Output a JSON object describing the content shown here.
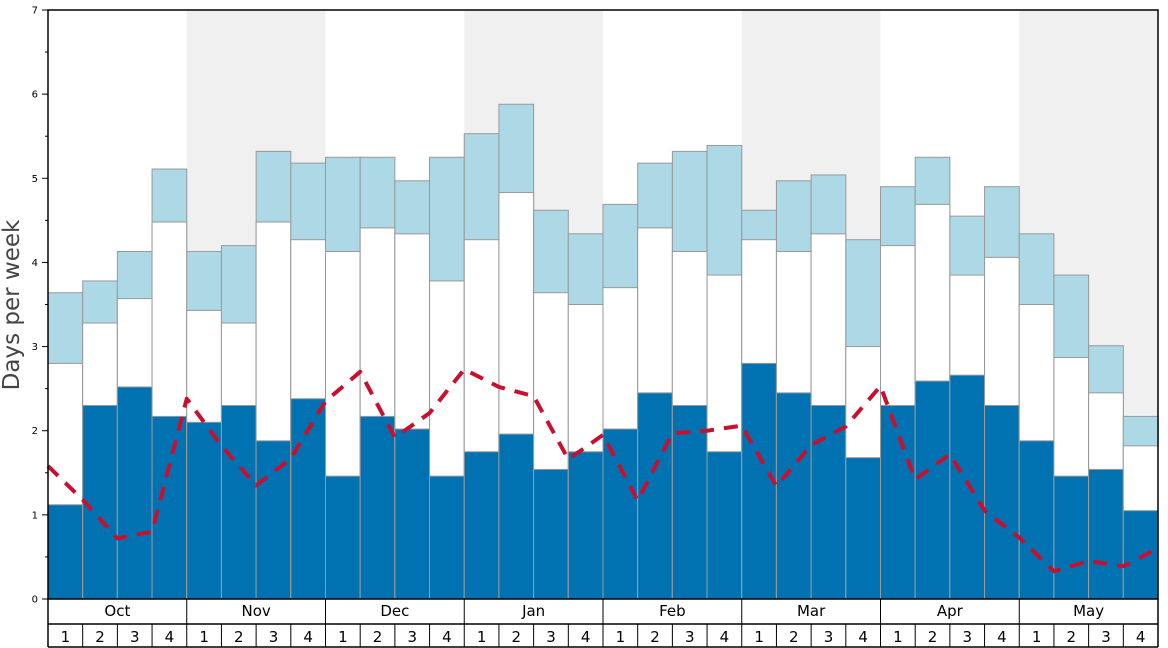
{
  "chart_data": {
    "type": "bar",
    "ylabel": "Days per week",
    "ylim": [
      0,
      7
    ],
    "yticks": [
      "0",
      "1",
      "2",
      "3",
      "4",
      "5",
      "6",
      "7"
    ],
    "months": [
      "Oct",
      "Nov",
      "Dec",
      "Jan",
      "Feb",
      "Mar",
      "Apr",
      "May"
    ],
    "weeks": [
      "1",
      "2",
      "3",
      "4"
    ],
    "colors": {
      "bottom": "#0072b2",
      "middle": "#ffffff",
      "top": "#add8e6",
      "line": "#c8102e",
      "shade": "#f0f0f0",
      "bar_border": "#999999"
    },
    "series": [
      {
        "name": "bottom",
        "values": [
          1.12,
          2.3,
          2.52,
          2.17,
          2.1,
          2.3,
          1.88,
          2.38,
          1.46,
          2.17,
          2.02,
          1.46,
          1.75,
          1.96,
          1.54,
          1.75,
          2.02,
          2.45,
          2.3,
          1.75,
          2.8,
          2.45,
          2.3,
          1.68,
          2.3,
          2.59,
          2.66,
          2.3,
          1.88,
          1.46,
          1.54,
          1.05
        ]
      },
      {
        "name": "middle",
        "values": [
          2.8,
          3.28,
          3.57,
          4.48,
          3.43,
          3.28,
          4.48,
          4.27,
          4.13,
          4.41,
          4.34,
          3.78,
          4.27,
          4.83,
          3.64,
          3.5,
          3.7,
          4.41,
          4.13,
          3.85,
          4.27,
          4.13,
          4.34,
          3.0,
          4.2,
          4.69,
          3.85,
          4.06,
          3.5,
          2.87,
          2.45,
          1.82
        ]
      },
      {
        "name": "top",
        "values": [
          3.64,
          3.78,
          4.13,
          5.11,
          4.13,
          4.2,
          5.32,
          5.18,
          5.25,
          5.25,
          4.97,
          5.25,
          5.53,
          5.88,
          4.62,
          4.34,
          4.69,
          5.18,
          5.32,
          5.39,
          4.62,
          4.97,
          5.04,
          4.27,
          4.9,
          5.25,
          4.55,
          4.9,
          4.34,
          3.85,
          3.01,
          2.17
        ]
      },
      {
        "name": "line",
        "values": [
          1.58,
          1.18,
          0.72,
          0.8,
          2.38,
          1.82,
          1.35,
          1.67,
          2.35,
          2.7,
          1.92,
          2.21,
          2.73,
          2.52,
          2.41,
          1.66,
          1.95,
          1.17,
          1.97,
          2.0,
          2.06,
          1.34,
          1.83,
          2.05,
          2.53,
          1.42,
          1.72,
          1.05,
          0.73,
          0.33,
          0.45,
          0.39,
          0.6
        ]
      }
    ]
  }
}
